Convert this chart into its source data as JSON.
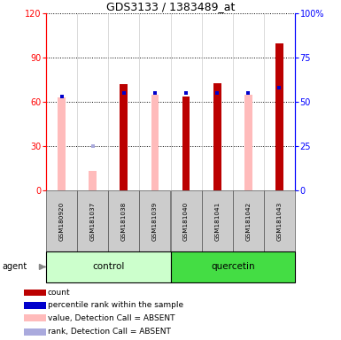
{
  "title": "GDS3133 / 1383489_at",
  "samples": [
    "GSM180920",
    "GSM181037",
    "GSM181038",
    "GSM181039",
    "GSM181040",
    "GSM181041",
    "GSM181042",
    "GSM181043"
  ],
  "red_bars": [
    0,
    0,
    72,
    0,
    64,
    73,
    0,
    100
  ],
  "pink_bars": [
    63,
    13,
    65,
    65,
    0,
    0,
    65,
    0
  ],
  "blue_squares_pct": [
    53,
    0,
    55,
    55,
    55,
    55,
    55,
    58
  ],
  "lightblue_squares_pct": [
    53,
    25,
    0,
    0,
    0,
    0,
    0,
    0
  ],
  "left_ylim": [
    0,
    120
  ],
  "right_ylim": [
    0,
    100
  ],
  "left_yticks": [
    0,
    30,
    60,
    90,
    120
  ],
  "right_yticks": [
    0,
    25,
    50,
    75,
    100
  ],
  "right_yticklabels": [
    "0",
    "25",
    "50",
    "75",
    "100%"
  ],
  "red_color": "#bb0000",
  "pink_color": "#ffbbbb",
  "blue_color": "#0000cc",
  "lightblue_color": "#aaaadd",
  "ctrl_color_light": "#ccffcc",
  "ctrl_color_dark": "#44dd44",
  "legend_labels": [
    "count",
    "percentile rank within the sample",
    "value, Detection Call = ABSENT",
    "rank, Detection Call = ABSENT"
  ],
  "legend_colors": [
    "#bb0000",
    "#0000cc",
    "#ffbbbb",
    "#aaaadd"
  ]
}
